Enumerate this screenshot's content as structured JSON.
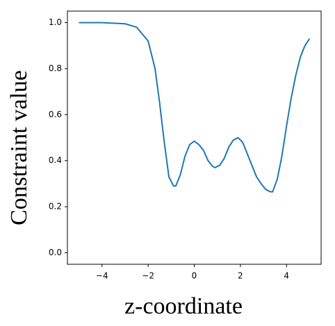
{
  "chart_data": {
    "type": "line",
    "xlabel": "z-coordinate",
    "ylabel": "Constraint value",
    "x": [
      -5,
      -4,
      -3,
      -2.5,
      -2,
      -1.7,
      -1.5,
      -1.3,
      -1.1,
      -0.9,
      -0.8,
      -0.6,
      -0.4,
      -0.2,
      0,
      0.2,
      0.4,
      0.6,
      0.8,
      0.9,
      1.1,
      1.3,
      1.5,
      1.7,
      1.9,
      2.1,
      2.3,
      2.5,
      2.7,
      2.9,
      3.1,
      3.3,
      3.4,
      3.6,
      3.8,
      4.0,
      4.2,
      4.4,
      4.6,
      4.8,
      5.0
    ],
    "series": [
      {
        "color": "#1f77b4",
        "values": [
          1.0,
          1.0,
          0.995,
          0.98,
          0.92,
          0.8,
          0.65,
          0.48,
          0.33,
          0.29,
          0.29,
          0.34,
          0.42,
          0.47,
          0.485,
          0.47,
          0.445,
          0.4,
          0.375,
          0.37,
          0.38,
          0.41,
          0.46,
          0.49,
          0.5,
          0.48,
          0.43,
          0.38,
          0.33,
          0.3,
          0.275,
          0.265,
          0.265,
          0.32,
          0.42,
          0.55,
          0.67,
          0.77,
          0.85,
          0.9,
          0.93
        ]
      }
    ],
    "xlim": [
      -5.5,
      5.5
    ],
    "xticks": [
      {
        "value": -4,
        "label": "−4"
      },
      {
        "value": -2,
        "label": "−2"
      },
      0,
      2,
      4
    ],
    "ylim": [
      -0.05,
      1.05
    ],
    "yticks": [
      {
        "value": 0,
        "label": "0.0"
      },
      0.2,
      0.4,
      0.6,
      0.8,
      {
        "value": 1,
        "label": "1.0"
      }
    ]
  }
}
